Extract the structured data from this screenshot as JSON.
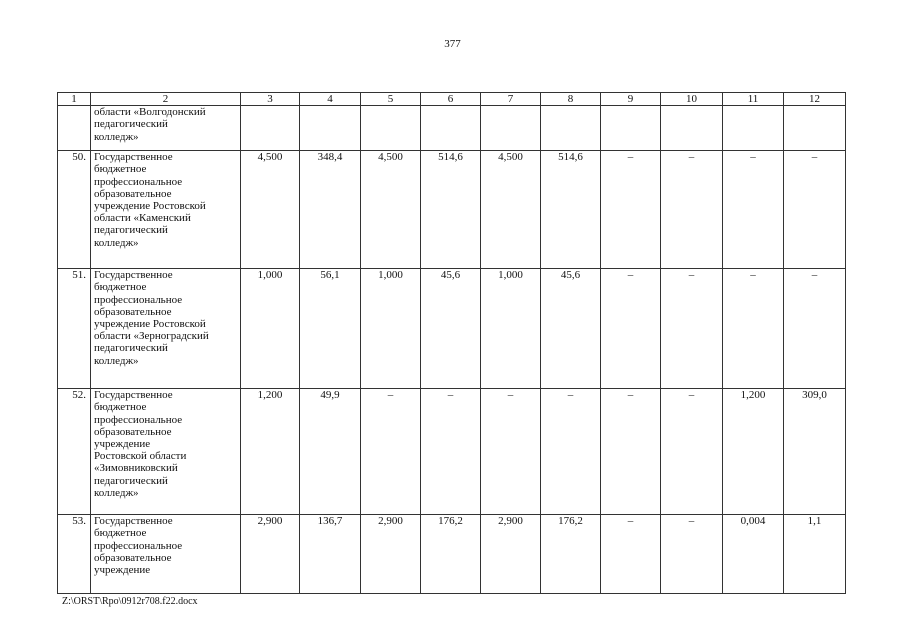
{
  "page_number": "377",
  "table": {
    "headers": [
      "1",
      "2",
      "3",
      "4",
      "5",
      "6",
      "7",
      "8",
      "9",
      "10",
      "11",
      "12"
    ],
    "rows": [
      {
        "num": "",
        "name": [
          "области «Волгодонский",
          "педагогический",
          "колледж»"
        ],
        "values": [
          "",
          "",
          "",
          "",
          "",
          "",
          "",
          "",
          "",
          ""
        ]
      },
      {
        "num": "50.",
        "name": [
          "Государственное",
          "бюджетное",
          "профессиональное",
          "образовательное",
          "учреждение Ростовской",
          "области «Каменский",
          "педагогический",
          "колледж»"
        ],
        "values": [
          "4,500",
          "348,4",
          "4,500",
          "514,6",
          "4,500",
          "514,6",
          "–",
          "–",
          "–",
          "–"
        ]
      },
      {
        "num": "51.",
        "name": [
          "Государственное",
          "бюджетное",
          "профессиональное",
          "образовательное",
          "учреждение Ростовской",
          "области «Зерноградский",
          "педагогический",
          "колледж»"
        ],
        "values": [
          "1,000",
          "56,1",
          "1,000",
          "45,6",
          "1,000",
          "45,6",
          "–",
          "–",
          "–",
          "–"
        ]
      },
      {
        "num": "52.",
        "name": [
          "Государственное",
          "бюджетное",
          "профессиональное",
          "образовательное",
          "учреждение",
          "Ростовской области",
          "«Зимовниковский",
          "педагогический",
          "колледж»"
        ],
        "values": [
          "1,200",
          "49,9",
          "–",
          "–",
          "–",
          "–",
          "–",
          "–",
          "1,200",
          "309,0"
        ]
      },
      {
        "num": "53.",
        "name": [
          "Государственное",
          "бюджетное",
          "профессиональное",
          "образовательное",
          "учреждение"
        ],
        "values": [
          "2,900",
          "136,7",
          "2,900",
          "176,2",
          "2,900",
          "176,2",
          "–",
          "–",
          "0,004",
          "1,1"
        ]
      }
    ]
  },
  "footer": "Z:\\ORST\\Rpo\\0912r708.f22.docx"
}
